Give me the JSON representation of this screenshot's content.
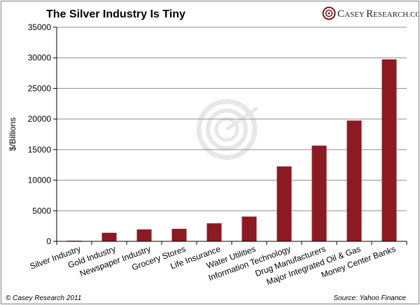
{
  "chart_data": {
    "type": "bar",
    "title": "The Silver Industry Is Tiny",
    "xlabel": "",
    "ylabel": "$/Billions",
    "ylim": [
      0,
      35000
    ],
    "yticks": [
      0,
      5000,
      10000,
      15000,
      20000,
      25000,
      30000,
      35000
    ],
    "categories": [
      "Silver Industry",
      "Gold Industry",
      "Newspaper Industry",
      "Grocery Stores",
      "Life Insurance",
      "Water Utilities",
      "Information Technology",
      "Drug Manufacturers",
      "Major Integrated Oil & Gas",
      "Money Center Banks"
    ],
    "values": [
      100,
      1400,
      1950,
      2050,
      2950,
      4050,
      12250,
      15650,
      19750,
      29750
    ],
    "bar_color": "#8b1a22",
    "grid": true,
    "legend": "none"
  },
  "branding": {
    "logo_first": "C",
    "logo_rest": "ASEY ",
    "logo_second": "R",
    "logo_rest2": "ESEARCH.COM"
  },
  "footer": {
    "copyright": "© Casey Research 2011",
    "source": "Source: Yahoo Finance"
  }
}
